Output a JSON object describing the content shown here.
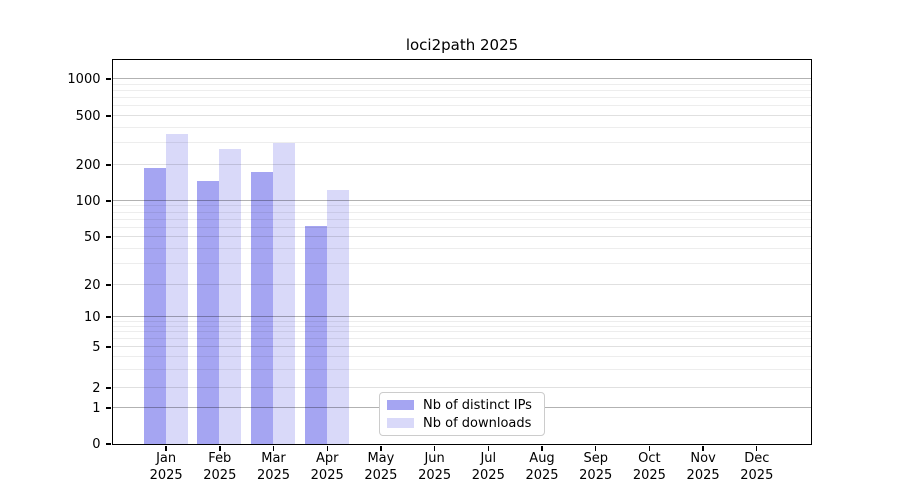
{
  "figure": {
    "title": "loci2path 2025"
  },
  "legend": {
    "items": [
      {
        "label": "Nb of distinct IPs",
        "color": "#a5a5f2"
      },
      {
        "label": "Nb of downloads",
        "color": "#d9d9f9"
      }
    ]
  },
  "chart_data": {
    "type": "bar",
    "title": "loci2path 2025",
    "categories": [
      "Jan",
      "Feb",
      "Mar",
      "Apr",
      "May",
      "Jun",
      "Jul",
      "Aug",
      "Sep",
      "Oct",
      "Nov",
      "Dec"
    ],
    "year_label": "2025",
    "series": [
      {
        "name": "Nb of distinct IPs",
        "color": "#a5a5f2",
        "values": [
          190,
          147,
          175,
          62,
          0,
          0,
          0,
          0,
          0,
          0,
          0,
          0
        ]
      },
      {
        "name": "Nb of downloads",
        "color": "#d9d9f9",
        "values": [
          357,
          270,
          302,
          124,
          0,
          0,
          0,
          0,
          0,
          0,
          0,
          0
        ]
      }
    ],
    "xlabel": "",
    "ylabel": "",
    "y_ticks": [
      0,
      1,
      2,
      5,
      10,
      20,
      50,
      100,
      200,
      500,
      1000
    ],
    "ylim": [
      0,
      1400
    ],
    "yscale": "log-like with 0 baseline",
    "grid": "horizontal, major and minor, drawn over bars",
    "legend_position": "lower center-left inside plot",
    "bar_layout": "two bars per month, touching, centered on month tick"
  }
}
